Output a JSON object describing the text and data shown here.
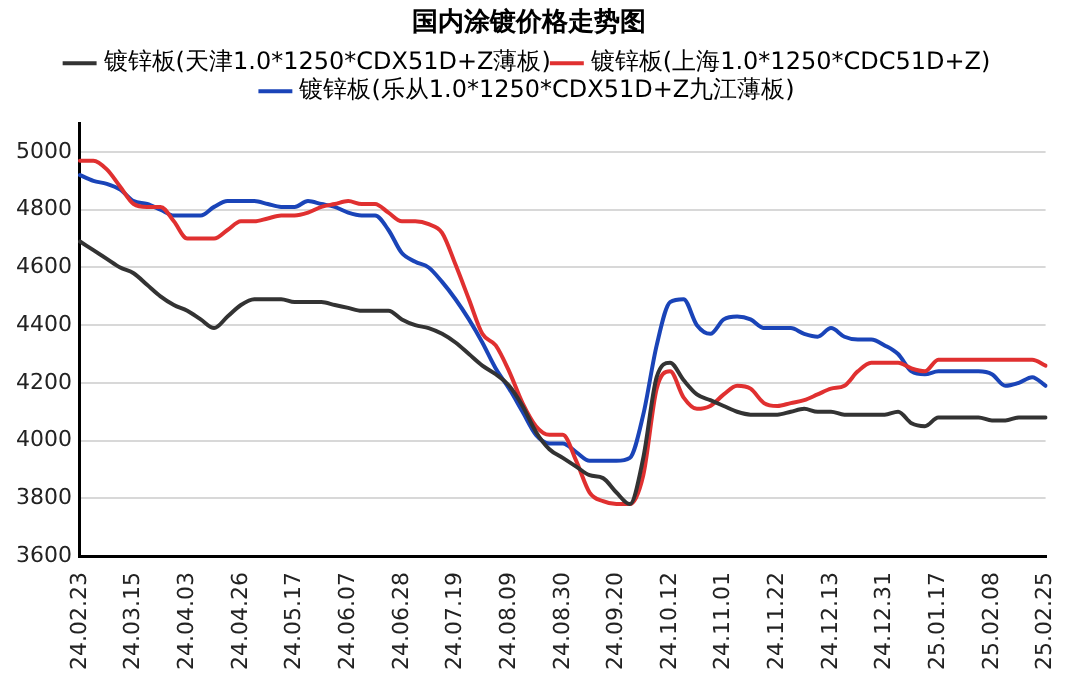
{
  "chart_data": {
    "type": "line",
    "title": "国内涂镀价格走势图",
    "categories": [
      "24.02.23",
      null,
      null,
      null,
      "24.03.15",
      null,
      null,
      null,
      "24.04.03",
      null,
      null,
      null,
      "24.04.26",
      null,
      null,
      null,
      "24.05.17",
      null,
      null,
      null,
      "24.06.07",
      null,
      null,
      null,
      "24.06.28",
      null,
      null,
      null,
      "24.07.19",
      null,
      null,
      null,
      "24.08.09",
      null,
      null,
      null,
      "24.08.30",
      null,
      null,
      null,
      "24.09.20",
      null,
      null,
      null,
      "24.10.12",
      null,
      null,
      null,
      "24.11.01",
      null,
      null,
      null,
      "24.11.22",
      null,
      null,
      null,
      "24.12.13",
      null,
      null,
      null,
      "24.12.31",
      null,
      null,
      null,
      "25.01.17",
      null,
      null,
      null,
      "25.02.08",
      null,
      null,
      null,
      "25.02.25"
    ],
    "series": [
      {
        "name": "镀锌板(天津1.0*1250*CDX51D+Z薄板)",
        "color": "#333333",
        "values": [
          4690,
          4660,
          4630,
          4600,
          4580,
          4540,
          4500,
          4470,
          4450,
          4420,
          4390,
          4430,
          4470,
          4490,
          4490,
          4490,
          4480,
          4480,
          4480,
          4470,
          4460,
          4450,
          4450,
          4450,
          4420,
          4400,
          4390,
          4370,
          4340,
          4300,
          4260,
          4230,
          4190,
          4120,
          4030,
          3970,
          3940,
          3910,
          3880,
          3870,
          3820,
          3780,
          3940,
          4220,
          4270,
          4210,
          4160,
          4140,
          4120,
          4100,
          4090,
          4090,
          4090,
          4100,
          4110,
          4100,
          4100,
          4090,
          4090,
          4090,
          4090,
          4100,
          4060,
          4050,
          4080,
          4080,
          4080,
          4080,
          4070,
          4070,
          4080,
          4080,
          4080
        ]
      },
      {
        "name": "镀锌板(上海1.0*1250*CDC51D+Z)",
        "color": "#e03030",
        "values": [
          4970,
          4970,
          4940,
          4880,
          4820,
          4810,
          4810,
          4760,
          4700,
          4700,
          4700,
          4730,
          4760,
          4760,
          4770,
          4780,
          4780,
          4790,
          4810,
          4820,
          4830,
          4820,
          4820,
          4790,
          4760,
          4760,
          4750,
          4720,
          4610,
          4490,
          4370,
          4330,
          4240,
          4130,
          4050,
          4020,
          4020,
          3930,
          3820,
          3790,
          3780,
          3780,
          3880,
          4180,
          4240,
          4150,
          4110,
          4120,
          4160,
          4190,
          4180,
          4130,
          4120,
          4130,
          4140,
          4160,
          4180,
          4190,
          4240,
          4270,
          4270,
          4270,
          4250,
          4240,
          4280,
          4280,
          4280,
          4280,
          4280,
          4280,
          4280,
          4280,
          4260
        ]
      },
      {
        "name": "镀锌板(乐从1.0*1250*CDX51D+Z九江薄板)",
        "color": "#1a44b8",
        "values": [
          4920,
          4900,
          4890,
          4870,
          4830,
          4820,
          4800,
          4780,
          4780,
          4780,
          4810,
          4830,
          4830,
          4830,
          4820,
          4810,
          4810,
          4830,
          4820,
          4810,
          4790,
          4780,
          4780,
          4730,
          4650,
          4620,
          4600,
          4550,
          4490,
          4420,
          4340,
          4250,
          4180,
          4100,
          4020,
          3990,
          3990,
          3960,
          3930,
          3930,
          3930,
          3940,
          4090,
          4330,
          4480,
          4490,
          4400,
          4370,
          4420,
          4430,
          4420,
          4390,
          4390,
          4390,
          4370,
          4360,
          4390,
          4360,
          4350,
          4350,
          4330,
          4300,
          4240,
          4230,
          4240,
          4240,
          4240,
          4240,
          4230,
          4190,
          4200,
          4220,
          4190
        ]
      }
    ],
    "ylim": [
      3600,
      5100
    ],
    "yticks": [
      3600,
      3800,
      4000,
      4200,
      4400,
      4600,
      4800,
      5000
    ],
    "grid": "y",
    "legend": "top",
    "marker": "none",
    "line_style": "solid"
  }
}
